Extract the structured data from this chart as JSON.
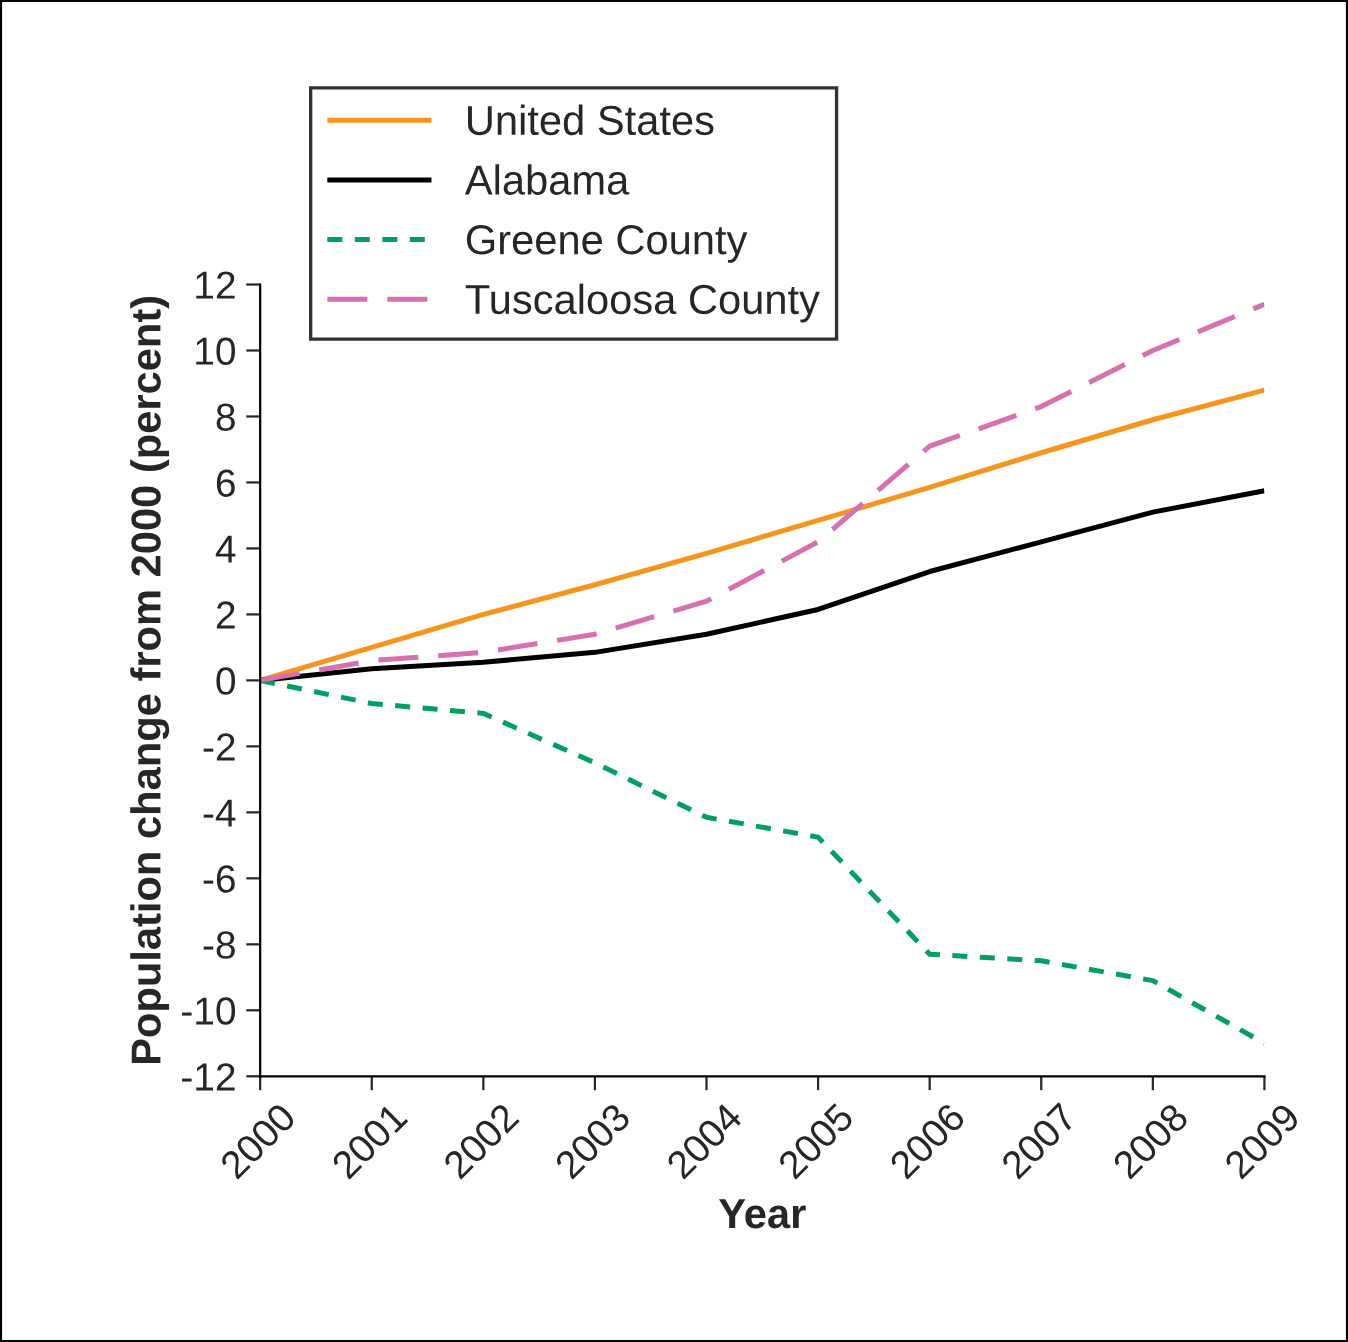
{
  "chart_data": {
    "type": "line",
    "xlabel": "Year",
    "ylabel": "Population change from 2000 (percent)",
    "categories": [
      "2000",
      "2001",
      "2002",
      "2003",
      "2004",
      "2005",
      "2006",
      "2007",
      "2008",
      "2009"
    ],
    "series": [
      {
        "name": "United States",
        "color": "#f7941d",
        "line_style": "solid",
        "values": [
          0,
          1.0,
          2.0,
          2.9,
          3.85,
          4.85,
          5.85,
          6.9,
          7.9,
          8.8
        ]
      },
      {
        "name": "Alabama",
        "color": "#000000",
        "line_style": "solid",
        "values": [
          0,
          0.35,
          0.55,
          0.85,
          1.4,
          2.15,
          3.3,
          4.2,
          5.1,
          5.75
        ]
      },
      {
        "name": "Greene County",
        "color": "#00a060",
        "line_style": "dotted",
        "values": [
          0,
          -0.7,
          -1.0,
          -2.5,
          -4.15,
          -4.75,
          -8.3,
          -8.5,
          -9.1,
          -11.0
        ]
      },
      {
        "name": "Tuscaloosa County",
        "color": "#d670b0",
        "line_style": "dashed",
        "values": [
          0,
          0.6,
          0.85,
          1.4,
          2.4,
          4.2,
          7.1,
          8.3,
          10.0,
          11.4
        ]
      }
    ],
    "ylim": [
      -12,
      12
    ],
    "yticks": [
      -12,
      -10,
      -8,
      -6,
      -4,
      -2,
      0,
      2,
      4,
      6,
      8,
      10,
      12
    ],
    "legend": "top left",
    "grid": false
  }
}
